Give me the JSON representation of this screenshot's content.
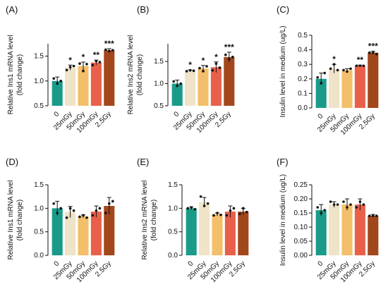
{
  "figure": {
    "category_colors": [
      "#1a9b8a",
      "#efe3c8",
      "#f3bf6a",
      "#e8604a",
      "#a2471c"
    ],
    "axis_color": "#111111"
  },
  "chart_data": [
    {
      "type": "bar",
      "panel_label": "(A)",
      "categories": [
        "0",
        "25mGy",
        "50mGy",
        "100mGy",
        "2.5Gy"
      ],
      "values": [
        1.0,
        1.27,
        1.3,
        1.37,
        1.62
      ],
      "errors": [
        0.08,
        0.05,
        0.08,
        0.05,
        0.03
      ],
      "points": [
        [
          1.05,
          0.95,
          1.0
        ],
        [
          1.22,
          1.28,
          1.3
        ],
        [
          1.35,
          1.2,
          1.34
        ],
        [
          1.32,
          1.4,
          1.38
        ],
        [
          1.63,
          1.6,
          1.62
        ]
      ],
      "significance": [
        "",
        "*",
        "*",
        "**",
        "***"
      ],
      "ylabel": [
        "Relative Ins1 mRNA level",
        "(fold change)"
      ],
      "ylim": [
        0.5,
        1.75
      ],
      "yticks": [
        "0.5",
        "1.0",
        "1.5"
      ],
      "ytick_values": [
        0.5,
        1.0,
        1.5
      ]
    },
    {
      "type": "bar",
      "panel_label": "(B)",
      "categories": [
        "0",
        "25mGy",
        "50mGy",
        "100mGy",
        "2.5Gy"
      ],
      "values": [
        1.0,
        1.29,
        1.34,
        1.37,
        1.6
      ],
      "errors": [
        0.08,
        0.02,
        0.07,
        0.12,
        0.11
      ],
      "points": [
        [
          1.05,
          0.95,
          1.0
        ],
        [
          1.28,
          1.3,
          1.29
        ],
        [
          1.35,
          1.28,
          1.39
        ],
        [
          1.3,
          1.45,
          1.36
        ],
        [
          1.65,
          1.55,
          1.6
        ]
      ],
      "significance": [
        "",
        "*",
        "*",
        "*",
        "***"
      ],
      "ylabel": [
        "Relative Ins2 mRNA level",
        "(fold change)"
      ],
      "ylim": [
        0.5,
        1.9
      ],
      "yticks": [
        "0.5",
        "1.0",
        "1.5"
      ],
      "ytick_values": [
        0.5,
        1.0,
        1.5
      ]
    },
    {
      "type": "bar",
      "panel_label": "(C)",
      "categories": [
        "0",
        "25mGy",
        "50mGy",
        "100mGy",
        "2.5Gy"
      ],
      "values": [
        0.2,
        0.27,
        0.26,
        0.29,
        0.38
      ],
      "errors": [
        0.04,
        0.03,
        0.01,
        0.005,
        0.01
      ],
      "points": [
        [
          0.21,
          0.17,
          0.24
        ],
        [
          0.27,
          0.3,
          0.26
        ],
        [
          0.26,
          0.25,
          0.27
        ],
        [
          0.29,
          0.29,
          0.29
        ],
        [
          0.38,
          0.38,
          0.37
        ]
      ],
      "significance": [
        "",
        "*",
        "",
        "**",
        "***"
      ],
      "ylabel": [
        "Insulin level in medium (ug/L)"
      ],
      "ylim": [
        0,
        0.5
      ],
      "yticks": [
        "0.0",
        "0.1",
        "0.2",
        "0.3",
        "0.4",
        "0.5"
      ],
      "ytick_values": [
        0,
        0.1,
        0.2,
        0.3,
        0.4,
        0.5
      ]
    },
    {
      "type": "bar",
      "panel_label": "(D)",
      "categories": [
        "0",
        "25mGy",
        "50mGy",
        "100mGy",
        "2.5Gy"
      ],
      "values": [
        1.0,
        0.92,
        0.83,
        0.93,
        1.05
      ],
      "errors": [
        0.15,
        0.12,
        0.03,
        0.12,
        0.18
      ],
      "points": [
        [
          1.1,
          0.9,
          1.0
        ],
        [
          0.8,
          1.0,
          0.95
        ],
        [
          0.82,
          0.85,
          0.8
        ],
        [
          0.85,
          0.95,
          1.0
        ],
        [
          0.9,
          1.1,
          1.15
        ]
      ],
      "significance": [
        "",
        "",
        "",
        "",
        ""
      ],
      "ylabel": [
        "Relative Ins1 mRNA level",
        "(fold change)"
      ],
      "ylim": [
        0,
        1.5
      ],
      "yticks": [
        "0.0",
        "0.5",
        "1.0",
        "1.5"
      ],
      "ytick_values": [
        0,
        0.5,
        1.0,
        1.5
      ]
    },
    {
      "type": "bar",
      "panel_label": "(E)",
      "categories": [
        "0",
        "25mGy",
        "50mGy",
        "100mGy",
        "2.5Gy"
      ],
      "values": [
        1.0,
        1.13,
        0.87,
        0.93,
        0.93
      ],
      "errors": [
        0.03,
        0.1,
        0.03,
        0.12,
        0.07
      ],
      "points": [
        [
          1.0,
          1.02,
          0.98
        ],
        [
          1.25,
          1.05,
          1.1
        ],
        [
          0.85,
          0.9,
          0.86
        ],
        [
          0.85,
          0.95,
          1.0
        ],
        [
          0.88,
          1.0,
          0.92
        ]
      ],
      "significance": [
        "",
        "",
        "",
        "",
        ""
      ],
      "ylabel": [
        "Relative Ins2 mRNA level",
        "(fold change)"
      ],
      "ylim": [
        0,
        1.5
      ],
      "yticks": [
        "0.0",
        "0.5",
        "1.0",
        "1.5"
      ],
      "ytick_values": [
        0,
        0.5,
        1.0,
        1.5
      ]
    },
    {
      "type": "bar",
      "panel_label": "(F)",
      "categories": [
        "0",
        "25mGy",
        "50mGy",
        "100mGy",
        "2.5Gy"
      ],
      "values": [
        0.16,
        0.18,
        0.18,
        0.18,
        0.14
      ],
      "errors": [
        0.02,
        0.01,
        0.02,
        0.02,
        0.005
      ],
      "points": [
        [
          0.17,
          0.15,
          0.16
        ],
        [
          0.19,
          0.18,
          0.18
        ],
        [
          0.19,
          0.17,
          0.18
        ],
        [
          0.17,
          0.19,
          0.18
        ],
        [
          0.14,
          0.14,
          0.14
        ]
      ],
      "significance": [
        "",
        "",
        "",
        "",
        ""
      ],
      "ylabel": [
        "Insulin level in medium (ug/L)"
      ],
      "ylim": [
        0,
        0.25
      ],
      "yticks": [
        "0.00",
        "0.05",
        "0.10",
        "0.15",
        "0.20",
        "0.25"
      ],
      "ytick_values": [
        0,
        0.05,
        0.1,
        0.15,
        0.2,
        0.25
      ]
    }
  ]
}
